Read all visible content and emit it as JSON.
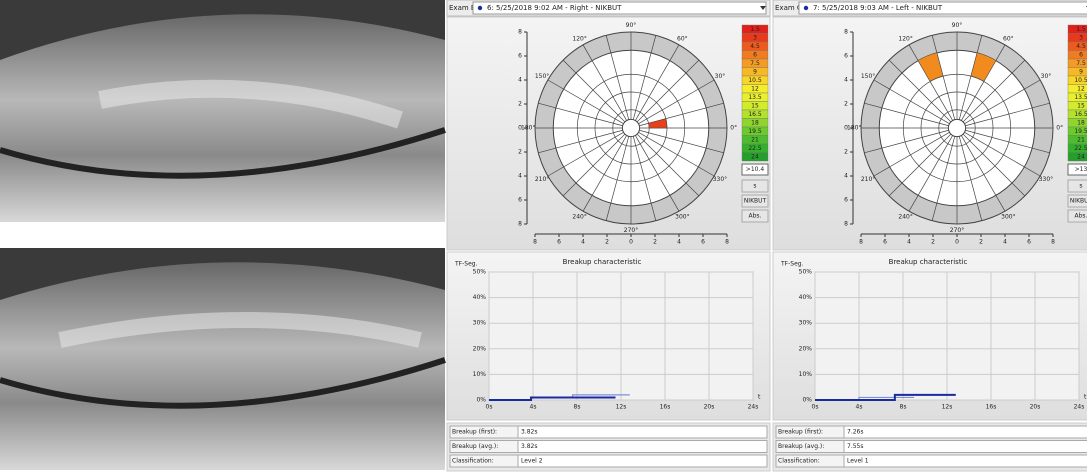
{
  "exams": [
    {
      "label": "Exam B:",
      "selection": "6: 5/25/2018 9:02 AM - Right - NIKBUT",
      "polar": {
        "rlim": [
          0,
          8
        ],
        "axis_ticks": [
          8,
          6,
          4,
          2,
          0,
          {
            "value": -2,
            "label": "2"
          },
          {
            "value": -4,
            "label": "4"
          },
          {
            "value": -6,
            "label": "6"
          },
          {
            "value": -8,
            "label": "8"
          }
        ],
        "angle_labels": [
          "0°",
          "30°",
          "60°",
          "90°",
          "120°",
          "150°",
          "180°",
          "210°",
          "240°",
          "270°",
          "300°",
          "330°"
        ],
        "sectors": [
          {
            "start": 0,
            "end": 15,
            "r_inner": 1.5,
            "r_outer": 3,
            "color": "#e8401c"
          }
        ]
      },
      "scale": {
        "values": [
          "1.5",
          "3",
          "4.5",
          "6",
          "7.5",
          "9",
          "10.5",
          "12",
          "13.5",
          "15",
          "16.5",
          "18",
          "19.5",
          "21",
          "22.5",
          "24"
        ]
      },
      "threshold": ">10.4",
      "buttons": [
        "s",
        "NIKBUT",
        "Abs."
      ],
      "chart": {
        "type": "line",
        "title": "Breakup characteristic",
        "ylabel": "TF-Seg.",
        "xlabel": "t",
        "xlim": [
          0,
          24
        ],
        "ylim": [
          0,
          50
        ],
        "xticks": [
          {
            "value": 0,
            "label": "0s"
          },
          {
            "value": 4,
            "label": "4s"
          },
          {
            "value": 8,
            "label": "8s"
          },
          {
            "value": 12,
            "label": "12s"
          },
          {
            "value": 16,
            "label": "16s"
          },
          {
            "value": 20,
            "label": "20s"
          },
          {
            "value": 24,
            "label": "24s"
          }
        ],
        "yticks": [
          {
            "value": 0,
            "label": "0%"
          },
          {
            "value": 10,
            "label": "10%"
          },
          {
            "value": 20,
            "label": "20%"
          },
          {
            "value": 30,
            "label": "30%"
          },
          {
            "value": 40,
            "label": "40%"
          },
          {
            "value": 50,
            "label": "50%"
          }
        ],
        "series": [
          {
            "color": "#8090d8",
            "x": [
              7.6,
              7.6,
              12.8
            ],
            "values": [
              1,
              2,
              2
            ]
          },
          {
            "color": "#1a2aa0",
            "x": [
              0,
              3.82,
              3.82,
              11.5
            ],
            "values": [
              0,
              0,
              1,
              1
            ]
          }
        ]
      },
      "fields": [
        {
          "label": "Breakup (first):",
          "value": "3.82s"
        },
        {
          "label": "Breakup (avg.):",
          "value": "3.82s"
        },
        {
          "label": "Classification:",
          "value": "Level 2"
        }
      ]
    },
    {
      "label": "Exam C:",
      "selection": "7: 5/25/2018 9:03 AM - Left - NIKBUT",
      "polar": {
        "rlim": [
          0,
          8
        ],
        "axis_ticks": [
          8,
          6,
          4,
          2,
          0,
          {
            "value": -2,
            "label": "2"
          },
          {
            "value": -4,
            "label": "4"
          },
          {
            "value": -6,
            "label": "6"
          },
          {
            "value": -8,
            "label": "8"
          }
        ],
        "angle_labels": [
          "0°",
          "30°",
          "60°",
          "90°",
          "120°",
          "150°",
          "180°",
          "210°",
          "240°",
          "270°",
          "300°",
          "330°"
        ],
        "sectors": [
          {
            "start": 60,
            "end": 75,
            "r_inner": 4.5,
            "r_outer": 6.5,
            "color": "#f28b1e"
          },
          {
            "start": 105,
            "end": 120,
            "r_inner": 4.5,
            "r_outer": 6.5,
            "color": "#f28b1e"
          }
        ]
      },
      "scale": {
        "values": [
          "1.5",
          "3",
          "4.5",
          "6",
          "7.5",
          "9",
          "10.5",
          "12",
          "13.5",
          "15",
          "16.5",
          "18",
          "19.5",
          "21",
          "22.5",
          "24"
        ]
      },
      "threshold": ">13",
      "buttons": [
        "s",
        "NIKBUT",
        "Abs."
      ],
      "chart": {
        "type": "line",
        "title": "Breakup characteristic",
        "ylabel": "TF-Seg.",
        "xlabel": "t",
        "xlim": [
          0,
          24
        ],
        "ylim": [
          0,
          50
        ],
        "xticks": [
          {
            "value": 0,
            "label": "0s"
          },
          {
            "value": 4,
            "label": "4s"
          },
          {
            "value": 8,
            "label": "8s"
          },
          {
            "value": 12,
            "label": "12s"
          },
          {
            "value": 16,
            "label": "16s"
          },
          {
            "value": 20,
            "label": "20s"
          },
          {
            "value": 24,
            "label": "24s"
          }
        ],
        "yticks": [
          {
            "value": 0,
            "label": "0%"
          },
          {
            "value": 10,
            "label": "10%"
          },
          {
            "value": 20,
            "label": "20%"
          },
          {
            "value": 30,
            "label": "30%"
          },
          {
            "value": 40,
            "label": "40%"
          },
          {
            "value": 50,
            "label": "50%"
          }
        ],
        "series": [
          {
            "color": "#8090d8",
            "x": [
              4,
              4,
              9
            ],
            "values": [
              0,
              1,
              1
            ]
          },
          {
            "color": "#1a2aa0",
            "x": [
              0,
              7.26,
              7.26,
              12.8
            ],
            "values": [
              0,
              0,
              2,
              2
            ]
          }
        ]
      },
      "fields": [
        {
          "label": "Breakup (first):",
          "value": "7.26s"
        },
        {
          "label": "Breakup (avg.):",
          "value": "7.55s"
        },
        {
          "label": "Classification:",
          "value": "Level 1"
        }
      ]
    }
  ]
}
